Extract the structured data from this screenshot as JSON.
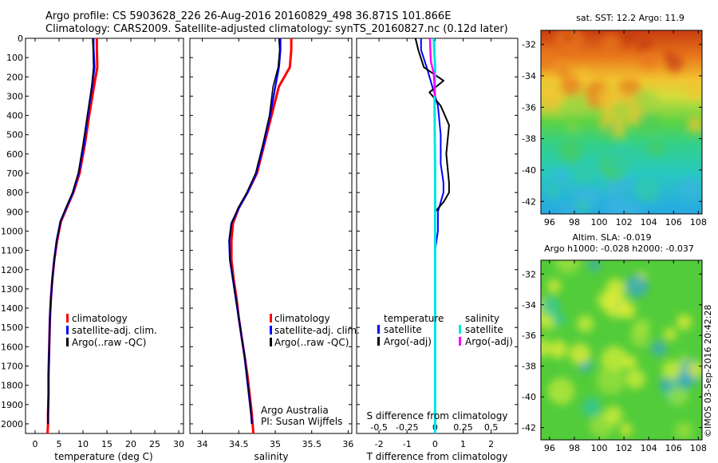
{
  "header": {
    "title_line1": "Argo profile: CS 5903628_226 26-Aug-2016 20160829_498 36.871S 101.866E",
    "title_line2": "Climatology: CARS2009. Satellite-adjusted climatology: synTS_20160827.nc (0.12d later)"
  },
  "colors": {
    "climatology": "#ff0000",
    "satellite_adj": "#0000ff",
    "argo": "#000000",
    "sal_satellite": "#00e5e5",
    "sal_argo": "#ff00ff"
  },
  "depth_axis": {
    "ylim": [
      0,
      2050
    ],
    "ticks": [
      0,
      100,
      200,
      300,
      400,
      500,
      600,
      700,
      800,
      900,
      1000,
      1100,
      1200,
      1300,
      1400,
      1500,
      1600,
      1700,
      1800,
      1900,
      2000
    ]
  },
  "temp_panel": {
    "xlabel": "temperature (deg C)",
    "ticks": [
      "0",
      "5",
      "10",
      "15",
      "20",
      "25",
      "30"
    ],
    "legend": [
      "climatology",
      "satellite-adj. clim.",
      "Argo(..raw -QC)"
    ]
  },
  "sal_panel": {
    "xlabel": "salinity",
    "ticks": [
      "34",
      "34.5",
      "35",
      "35.5",
      "36"
    ],
    "legend": [
      "climatology",
      "satellite-adj. clim.",
      "Argo(..raw -QC)"
    ],
    "credit_line1": "Argo Australia",
    "credit_line2": "PI: Susan Wijffels"
  },
  "diff_panel": {
    "xlabel": "T difference from climatology",
    "top_label": "S difference from climatology",
    "t_ticks": [
      "-2",
      "-1",
      "0",
      "1",
      "2"
    ],
    "s_ticks": [
      "-0.5",
      "-0.25",
      "0",
      "0.25",
      "0.5"
    ],
    "legend_temp_title": "temperature",
    "legend_sal_title": "salinity",
    "legend_temp_items": [
      "satellite",
      "Argo(-adj)"
    ],
    "legend_sal_items": [
      "satellite",
      "Argo(-adj)"
    ]
  },
  "sst_map": {
    "title": "sat. SST: 12.2 Argo: 11.9",
    "x_ticks": [
      "96",
      "98",
      "100",
      "102",
      "104",
      "106",
      "108"
    ],
    "y_ticks": [
      "-32",
      "-34",
      "-36",
      "-38",
      "-40",
      "-42"
    ]
  },
  "sla_map": {
    "title_line1": "Altim. SLA: -0.019",
    "title_line2": "Argo h1000: -0.028 h2000: -0.037",
    "x_ticks": [
      "96",
      "98",
      "100",
      "102",
      "104",
      "106",
      "108"
    ],
    "y_ticks": [
      "-32",
      "-34",
      "-36",
      "-38",
      "-40",
      "-42"
    ]
  },
  "footer": {
    "stamp": "©IMOS 03-Sep-2016 20:42:28"
  },
  "chart_data": [
    {
      "type": "line",
      "xlabel": "temperature (deg C)",
      "ylabel": "",
      "xlim": [
        -2,
        31
      ],
      "ylim": [
        0,
        2050
      ],
      "y_inverted": true,
      "series": [
        {
          "name": "climatology",
          "x": [
            12.9,
            12.9,
            13.0,
            12.3,
            11.3,
            10.4,
            9.3,
            8.0,
            6.6,
            5.4,
            4.6,
            4.0,
            3.6,
            3.3,
            3.1,
            3.0,
            2.9,
            2.8,
            2.8,
            2.7,
            2.7,
            2.6
          ],
          "y": [
            0,
            50,
            150,
            250,
            400,
            550,
            700,
            800,
            880,
            950,
            1050,
            1150,
            1250,
            1350,
            1450,
            1550,
            1650,
            1750,
            1850,
            1950,
            2000,
            2050
          ]
        },
        {
          "name": "satellite-adj. clim.",
          "x": [
            12.2,
            12.2,
            12.4,
            11.9,
            11.0,
            10.2,
            9.1,
            7.9,
            6.5,
            5.3,
            4.5,
            4.0,
            3.6,
            3.3,
            3.1,
            3.0,
            2.9,
            2.8,
            2.8,
            2.7,
            2.7
          ],
          "y": [
            0,
            50,
            150,
            250,
            400,
            550,
            700,
            800,
            880,
            950,
            1050,
            1150,
            1250,
            1350,
            1450,
            1550,
            1650,
            1750,
            1850,
            1950,
            2000
          ]
        },
        {
          "name": "Argo(..raw -QC)",
          "x": [
            12.0,
            12.1,
            12.2,
            11.8,
            10.9,
            10.0,
            9.0,
            7.8,
            6.4,
            5.3,
            4.5,
            4.0,
            3.6,
            3.3,
            3.1,
            3.0,
            2.9,
            2.8,
            2.8,
            2.7,
            2.7
          ],
          "y": [
            0,
            50,
            150,
            250,
            400,
            550,
            700,
            800,
            880,
            950,
            1050,
            1150,
            1250,
            1350,
            1450,
            1550,
            1650,
            1750,
            1850,
            1950,
            2000
          ]
        }
      ]
    },
    {
      "type": "line",
      "xlabel": "salinity",
      "ylabel": "",
      "xlim": [
        33.83,
        36.05
      ],
      "ylim": [
        0,
        2050
      ],
      "y_inverted": true,
      "series": [
        {
          "name": "climatology",
          "x": [
            35.22,
            35.22,
            35.2,
            35.05,
            34.95,
            34.85,
            34.75,
            34.62,
            34.5,
            34.42,
            34.4,
            34.4,
            34.43,
            34.47,
            34.5,
            34.54,
            34.58,
            34.62,
            34.65,
            34.68,
            34.69,
            34.7
          ],
          "y": [
            0,
            60,
            150,
            250,
            400,
            550,
            700,
            800,
            880,
            960,
            1050,
            1150,
            1250,
            1350,
            1450,
            1550,
            1650,
            1750,
            1850,
            1950,
            2000,
            2050
          ]
        },
        {
          "name": "satellite-adj. clim.",
          "x": [
            35.07,
            35.07,
            35.05,
            35.0,
            34.93,
            34.84,
            34.74,
            34.62,
            34.5,
            34.4,
            34.37,
            34.38,
            34.42,
            34.46,
            34.5,
            34.54,
            34.58,
            34.61,
            34.64,
            34.67,
            34.68
          ],
          "y": [
            0,
            60,
            150,
            250,
            400,
            550,
            700,
            800,
            880,
            960,
            1050,
            1150,
            1250,
            1350,
            1450,
            1550,
            1650,
            1750,
            1850,
            1950,
            2000
          ]
        },
        {
          "name": "Argo(..raw -QC)",
          "x": [
            35.05,
            35.06,
            35.04,
            34.97,
            34.92,
            34.83,
            34.73,
            34.61,
            34.49,
            34.4,
            34.37,
            34.38,
            34.42,
            34.46,
            34.5,
            34.54,
            34.58,
            34.61,
            34.64,
            34.67,
            34.68
          ],
          "y": [
            0,
            60,
            150,
            250,
            400,
            550,
            700,
            800,
            880,
            960,
            1050,
            1150,
            1250,
            1350,
            1450,
            1550,
            1650,
            1750,
            1850,
            1950,
            2000
          ]
        }
      ]
    },
    {
      "type": "line",
      "xlabel": "T difference from climatology",
      "ylabel": "",
      "xlim": [
        -2.8,
        2.95
      ],
      "ylim": [
        0,
        2050
      ],
      "y_inverted": true,
      "series": [
        {
          "name": "temperature satellite",
          "x": [
            -0.5,
            -0.5,
            -0.3,
            -0.1,
            0.1,
            0.2,
            0.2,
            0.3,
            0.3,
            0.1,
            0.1,
            0.0,
            0.0,
            0.0,
            0.0,
            0.0,
            0.0,
            0.0,
            0.0,
            0.0
          ],
          "y": [
            0,
            60,
            150,
            250,
            350,
            500,
            650,
            750,
            800,
            900,
            1000,
            1100,
            1250,
            1400,
            1550,
            1700,
            1800,
            1900,
            2000,
            2050
          ]
        },
        {
          "name": "temperature Argo(-adj)",
          "x": [
            -0.7,
            -0.6,
            -0.4,
            0.3,
            -0.2,
            0.2,
            0.5,
            0.4,
            0.5,
            0.5,
            0.3,
            0.0,
            0.0,
            0.0,
            0.0,
            0.0,
            0.0,
            0.0,
            0.0,
            0.0,
            0.0
          ],
          "y": [
            0,
            60,
            150,
            220,
            280,
            350,
            450,
            600,
            750,
            800,
            850,
            900,
            1000,
            1100,
            1250,
            1400,
            1550,
            1700,
            1850,
            2000,
            2050
          ]
        },
        {
          "name": "salinity satellite",
          "x": [
            -0.05,
            -0.03,
            0.0,
            -0.02,
            -0.01,
            0.0,
            0.0,
            0.0,
            0.0,
            0.0,
            0.0,
            0.0,
            0.0
          ],
          "y": [
            0,
            60,
            150,
            300,
            500,
            700,
            900,
            1100,
            1300,
            1500,
            1700,
            1900,
            2050
          ]
        },
        {
          "name": "salinity Argo(-adj)",
          "x": [
            -0.18,
            -0.17,
            -0.15,
            -0.05,
            -0.02,
            0.0
          ],
          "y": [
            0,
            60,
            120,
            180,
            240,
            300
          ]
        }
      ]
    },
    {
      "type": "heatmap",
      "title": "sat. SST: 12.2 Argo: 11.9",
      "xlim": [
        95.3,
        108.3
      ],
      "ylim": [
        -42.8,
        -31.1
      ],
      "x_ticks": [
        96,
        98,
        100,
        102,
        104,
        106,
        108
      ],
      "y_ticks": [
        -32,
        -34,
        -36,
        -38,
        -40,
        -42
      ]
    },
    {
      "type": "heatmap",
      "title": "Altim. SLA: -0.019",
      "xlim": [
        95.3,
        108.3
      ],
      "ylim": [
        -42.8,
        -31.1
      ],
      "x_ticks": [
        96,
        98,
        100,
        102,
        104,
        106,
        108
      ],
      "y_ticks": [
        -32,
        -34,
        -36,
        -38,
        -40,
        -42
      ]
    }
  ]
}
